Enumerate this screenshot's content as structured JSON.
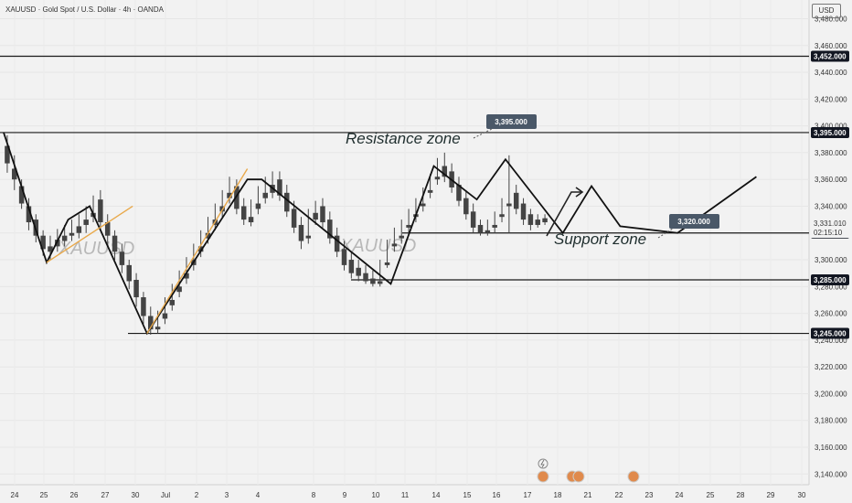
{
  "header": {
    "symbol_title": "XAUUSD · Gold Spot / U.S. Dollar · 4h · OANDA",
    "currency": "USD"
  },
  "watermark": "XAUUSD",
  "chart_data": {
    "type": "candlestick",
    "symbol": "XAUUSD",
    "timeframe": "4h",
    "y_axis": {
      "ticks": [
        3140,
        3160,
        3180,
        3200,
        3220,
        3240,
        3260,
        3280,
        3300,
        3320,
        3340,
        3360,
        3380,
        3400,
        3420,
        3440,
        3460,
        3480
      ],
      "tick_labels": [
        "3,140.000",
        "3,160.000",
        "3,180.000",
        "3,200.000",
        "3,220.000",
        "3,240.000",
        "3,260.000",
        "3,280.000",
        "3,300.000",
        "3,320.000",
        "3,340.000",
        "3,360.000",
        "3,380.000",
        "3,400.000",
        "3,420.000",
        "3,440.000",
        "3,460.000",
        "3,480.000"
      ],
      "range": [
        3132,
        3494
      ]
    },
    "x_axis": {
      "labels": [
        "24",
        "25",
        "26",
        "27",
        "30",
        "Jul",
        "2",
        "3",
        "4",
        "8",
        "9",
        "10",
        "11",
        "14",
        "15",
        "16",
        "17",
        "18",
        "21",
        "22",
        "23",
        "24",
        "25",
        "28",
        "29",
        "30"
      ]
    },
    "horizontal_levels": [
      {
        "value": 3452,
        "label": "3,452.000"
      },
      {
        "value": 3395,
        "label": "3,395.000"
      },
      {
        "value": 3320,
        "label": "3,320.000"
      },
      {
        "value": 3285,
        "label": "3,285.000"
      },
      {
        "value": 3245,
        "label": "3,245.000"
      }
    ],
    "callouts": [
      {
        "value": 3395,
        "label": "3,395.000"
      },
      {
        "value": 3320,
        "label": "3,320.000"
      }
    ],
    "zone_labels": [
      {
        "text": "Resistance zone",
        "value": 3395
      },
      {
        "text": "Support zone",
        "value": 3320
      }
    ],
    "current_price": {
      "label": "3,331.010",
      "countdown": "02:15:10"
    },
    "candles": [
      [
        3385,
        3393,
        3372,
        3365
      ],
      [
        3368,
        3378,
        3360,
        3352
      ],
      [
        3355,
        3360,
        3342,
        3338
      ],
      [
        3340,
        3346,
        3328,
        3322
      ],
      [
        3330,
        3334,
        3318,
        3313
      ],
      [
        3318,
        3322,
        3308,
        3303
      ],
      [
        3310,
        3318,
        3306,
        3300
      ],
      [
        3315,
        3323,
        3310,
        3306
      ],
      [
        3318,
        3326,
        3314,
        3310
      ],
      [
        3320,
        3330,
        3318,
        3314
      ],
      [
        3325,
        3334,
        3320,
        3316
      ],
      [
        3330,
        3340,
        3326,
        3320
      ],
      [
        3335,
        3348,
        3332,
        3328
      ],
      [
        3345,
        3352,
        3328,
        3322
      ],
      [
        3328,
        3334,
        3318,
        3312
      ],
      [
        3318,
        3322,
        3306,
        3300
      ],
      [
        3306,
        3312,
        3296,
        3290
      ],
      [
        3296,
        3300,
        3284,
        3278
      ],
      [
        3285,
        3290,
        3272,
        3265
      ],
      [
        3272,
        3276,
        3258,
        3252
      ],
      [
        3258,
        3265,
        3248,
        3244
      ],
      [
        3250,
        3262,
        3248,
        3245
      ],
      [
        3260,
        3272,
        3256,
        3252
      ],
      [
        3270,
        3282,
        3266,
        3262
      ],
      [
        3280,
        3292,
        3276,
        3272
      ],
      [
        3290,
        3302,
        3286,
        3282
      ],
      [
        3300,
        3312,
        3296,
        3292
      ],
      [
        3310,
        3322,
        3306,
        3302
      ],
      [
        3320,
        3332,
        3316,
        3312
      ],
      [
        3330,
        3342,
        3326,
        3322
      ],
      [
        3340,
        3352,
        3336,
        3332
      ],
      [
        3350,
        3362,
        3346,
        3342
      ],
      [
        3355,
        3360,
        3338,
        3334
      ],
      [
        3340,
        3346,
        3330,
        3326
      ],
      [
        3332,
        3345,
        3328,
        3325
      ],
      [
        3342,
        3355,
        3338,
        3334
      ],
      [
        3350,
        3362,
        3346,
        3342
      ],
      [
        3356,
        3366,
        3350,
        3346
      ],
      [
        3360,
        3366,
        3348,
        3344
      ],
      [
        3350,
        3356,
        3336,
        3332
      ],
      [
        3338,
        3344,
        3324,
        3320
      ],
      [
        3326,
        3332,
        3314,
        3308
      ],
      [
        3318,
        3338,
        3316,
        3312
      ],
      [
        3335,
        3344,
        3330,
        3326
      ],
      [
        3340,
        3346,
        3328,
        3324
      ],
      [
        3330,
        3336,
        3316,
        3312
      ],
      [
        3318,
        3324,
        3306,
        3302
      ],
      [
        3308,
        3314,
        3296,
        3292
      ],
      [
        3300,
        3306,
        3290,
        3286
      ],
      [
        3294,
        3300,
        3288,
        3284
      ],
      [
        3290,
        3296,
        3284,
        3282
      ],
      [
        3286,
        3292,
        3282,
        3280
      ],
      [
        3284,
        3300,
        3282,
        3280
      ],
      [
        3298,
        3315,
        3296,
        3294
      ],
      [
        3312,
        3324,
        3310,
        3306
      ],
      [
        3318,
        3330,
        3316,
        3312
      ],
      [
        3326,
        3338,
        3324,
        3320
      ],
      [
        3334,
        3346,
        3332,
        3328
      ],
      [
        3342,
        3354,
        3340,
        3336
      ],
      [
        3352,
        3364,
        3350,
        3346
      ],
      [
        3362,
        3376,
        3360,
        3356
      ],
      [
        3370,
        3380,
        3362,
        3358
      ],
      [
        3366,
        3372,
        3354,
        3350
      ],
      [
        3356,
        3362,
        3344,
        3340
      ],
      [
        3346,
        3352,
        3334,
        3330
      ],
      [
        3336,
        3342,
        3324,
        3320
      ],
      [
        3326,
        3330,
        3320,
        3318
      ],
      [
        3322,
        3330,
        3320,
        3318
      ],
      [
        3326,
        3336,
        3324,
        3320
      ],
      [
        3334,
        3346,
        3332,
        3328
      ],
      [
        3342,
        3378,
        3340,
        3320
      ],
      [
        3350,
        3356,
        3338,
        3334
      ],
      [
        3342,
        3346,
        3330,
        3326
      ],
      [
        3334,
        3338,
        3326,
        3322
      ],
      [
        3330,
        3334,
        3326,
        3324
      ],
      [
        3331,
        3334,
        3328,
        3326
      ]
    ],
    "drawing_path": [
      [
        0,
        3395
      ],
      [
        6,
        3298
      ],
      [
        9,
        3330
      ],
      [
        12,
        3340
      ],
      [
        20,
        3245
      ],
      [
        34,
        3360
      ],
      [
        36,
        3360
      ],
      [
        54,
        3282
      ],
      [
        60,
        3370
      ],
      [
        66,
        3345
      ],
      [
        70,
        3375
      ],
      [
        78,
        3320
      ],
      [
        82,
        3355
      ],
      [
        86,
        3325
      ],
      [
        94,
        3320
      ],
      [
        105,
        3362
      ]
    ]
  }
}
